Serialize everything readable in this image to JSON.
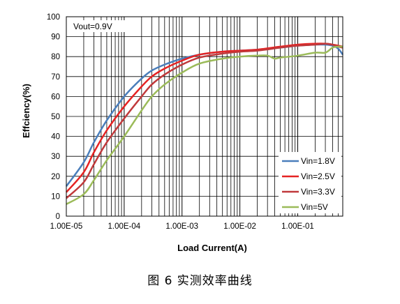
{
  "chart_data": {
    "type": "line",
    "xscale": "log",
    "xlabel": "Load Current(A)",
    "ylabel": "Effciency(%)",
    "annotation": "Vout=0.9V",
    "xlim": [
      1e-05,
      0.6
    ],
    "ylim": [
      0,
      100
    ],
    "x_ticks": [
      1e-05,
      0.0001,
      0.001,
      0.01,
      0.1
    ],
    "x_tick_labels": [
      "1.00E-05",
      "1.00E-04",
      "1.00E-03",
      "1.00E-02",
      "1.00E-01"
    ],
    "y_ticks": [
      0,
      10,
      20,
      30,
      40,
      50,
      60,
      70,
      80,
      90,
      100
    ],
    "y_tick_labels": [
      "0",
      "10",
      "20",
      "30",
      "40",
      "50",
      "60",
      "70",
      "80",
      "90",
      "100"
    ],
    "grid": true,
    "legend_position": "bottom-right",
    "series": [
      {
        "name": "Vin=1.8V",
        "color": "#4a7ebb",
        "x": [
          1e-05,
          2e-05,
          3e-05,
          5e-05,
          0.0001,
          0.0002,
          0.0003,
          0.0005,
          0.001,
          0.002,
          0.005,
          0.01,
          0.02,
          0.05,
          0.1,
          0.2,
          0.3,
          0.4,
          0.5,
          0.6
        ],
        "y": [
          15,
          27,
          37,
          48,
          60,
          69,
          73,
          76,
          79,
          81,
          82.5,
          83,
          83.5,
          84.5,
          85.5,
          86,
          86,
          85.5,
          84,
          81
        ]
      },
      {
        "name": "Vin=2.5V",
        "color": "#e52222",
        "x": [
          1e-05,
          2e-05,
          3e-05,
          5e-05,
          0.0001,
          0.0002,
          0.0003,
          0.0005,
          0.001,
          0.002,
          0.005,
          0.01,
          0.02,
          0.05,
          0.1,
          0.2,
          0.3,
          0.4,
          0.5,
          0.6
        ],
        "y": [
          12,
          22,
          32,
          43,
          55,
          65,
          70,
          74,
          78,
          81,
          82.5,
          83,
          83.5,
          85,
          86,
          86.5,
          86.5,
          86,
          85.5,
          85
        ]
      },
      {
        "name": "Vin=3.3V",
        "color": "#c0393b",
        "x": [
          1e-05,
          2e-05,
          3e-05,
          5e-05,
          0.0001,
          0.0002,
          0.0003,
          0.0005,
          0.001,
          0.002,
          0.005,
          0.01,
          0.02,
          0.05,
          0.1,
          0.2,
          0.3,
          0.4,
          0.5,
          0.6
        ],
        "y": [
          9,
          17,
          26,
          37,
          49,
          60,
          66,
          71,
          76,
          79.5,
          81.5,
          82.5,
          83,
          84.5,
          85.5,
          86,
          86.5,
          86,
          85,
          84.5
        ]
      },
      {
        "name": "Vin=5V",
        "color": "#9bbb59",
        "x": [
          1e-05,
          2e-05,
          3e-05,
          5e-05,
          0.0001,
          0.0002,
          0.0003,
          0.0005,
          0.001,
          0.002,
          0.005,
          0.01,
          0.02,
          0.03,
          0.04,
          0.05,
          0.1,
          0.2,
          0.3,
          0.4,
          0.5,
          0.6
        ],
        "y": [
          6,
          11,
          18,
          28,
          40,
          53,
          60,
          66,
          72,
          76.5,
          79,
          80,
          80.5,
          80.5,
          79,
          79.5,
          80.5,
          82,
          82,
          84.5,
          85,
          85
        ]
      }
    ]
  },
  "caption": "图 6 实测效率曲线"
}
